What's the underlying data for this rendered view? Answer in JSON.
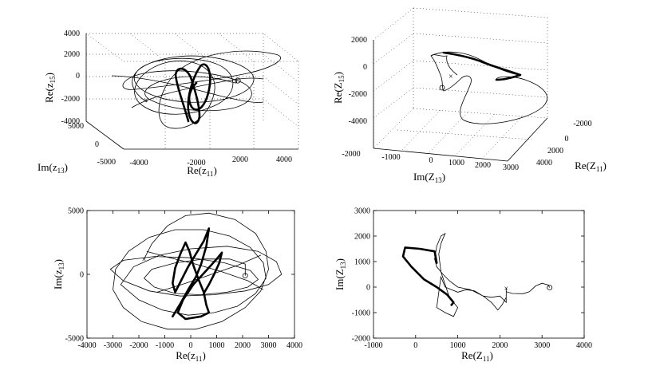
{
  "chart_data": [
    {
      "panel": "top-left",
      "type": "line",
      "projection": "3d",
      "xlabel": "Re(z",
      "xlabel_sub": "11",
      "xlabel_tail": ")",
      "ylabel": "Im(z",
      "ylabel_sub": "13",
      "ylabel_tail": ")",
      "zlabel": "Re(z",
      "zlabel_sub": "15",
      "zlabel_tail": ")",
      "xlim": [
        -4000,
        4000
      ],
      "ylim": [
        -5000,
        5000
      ],
      "zlim": [
        -4000,
        4000
      ],
      "xticks": [
        "-4000",
        "-2000",
        "0",
        "2000",
        "4000"
      ],
      "yticks": [
        "-5000",
        "0",
        "5000"
      ],
      "zticks": [
        "-4000",
        "-2000",
        "0",
        "2000",
        "4000"
      ],
      "grid": true,
      "markers": {
        "start": "x",
        "end": "o"
      }
    },
    {
      "panel": "top-right",
      "type": "line",
      "projection": "3d",
      "xlabel": "Re(Z",
      "xlabel_sub": "11",
      "xlabel_tail": ")",
      "ylabel": "Im(Z",
      "ylabel_sub": "13",
      "ylabel_tail": ")",
      "zlabel": "Re(Z",
      "zlabel_sub": "15",
      "zlabel_tail": ")",
      "xlim": [
        -2000,
        4000
      ],
      "ylim": [
        -2000,
        3000
      ],
      "zlim": [
        -4000,
        2000
      ],
      "xticks": [
        "-2000",
        "0",
        "2000",
        "4000"
      ],
      "yticks": [
        "-2000",
        "-1000",
        "0",
        "1000",
        "2000",
        "3000"
      ],
      "zticks": [
        "-4000",
        "-2000",
        "0",
        "2000"
      ],
      "grid": true,
      "markers": {
        "start": "x",
        "end": "o"
      }
    },
    {
      "panel": "bottom-left",
      "type": "line",
      "xlabel": "Re(z",
      "xlabel_sub": "11",
      "xlabel_tail": ")",
      "ylabel": "Im(z",
      "ylabel_sub": "13",
      "ylabel_tail": ")",
      "xlim": [
        -4000,
        4000
      ],
      "ylim": [
        -5000,
        5000
      ],
      "xticks": [
        "-4000",
        "-3000",
        "-2000",
        "-1000",
        "0",
        "1000",
        "2000",
        "3000",
        "4000"
      ],
      "yticks": [
        "-5000",
        "0",
        "5000"
      ],
      "grid": false,
      "series": [
        {
          "style": "thin",
          "points": [
            [
              -1800,
              1200
            ],
            [
              -1500,
              2400
            ],
            [
              -900,
              3800
            ],
            [
              -200,
              4600
            ],
            [
              700,
              4800
            ],
            [
              1700,
              4300
            ],
            [
              2500,
              3200
            ],
            [
              2900,
              1800
            ],
            [
              3000,
              400
            ],
            [
              2700,
              -1300
            ],
            [
              2100,
              -2600
            ],
            [
              1200,
              -3700
            ],
            [
              200,
              -4300
            ],
            [
              -900,
              -4300
            ],
            [
              -1900,
              -3700
            ],
            [
              -2600,
              -2600
            ],
            [
              -3000,
              -1200
            ],
            [
              -2900,
              400
            ],
            [
              -2400,
              1800
            ],
            [
              -1600,
              2900
            ],
            [
              -600,
              3500
            ],
            [
              500,
              3500
            ],
            [
              1500,
              3000
            ],
            [
              2300,
              2100
            ],
            [
              2800,
              900
            ],
            [
              2900,
              -300
            ],
            [
              2500,
              -1500
            ],
            [
              1800,
              -2500
            ],
            [
              900,
              -3000
            ],
            [
              -100,
              -3200
            ],
            [
              -1100,
              -2800
            ],
            [
              -2000,
              -2000
            ],
            [
              -2700,
              -800
            ],
            [
              -2200,
              600
            ],
            [
              -1200,
              1500
            ],
            [
              0,
              2000
            ],
            [
              1400,
              2200
            ],
            [
              2600,
              1800
            ],
            [
              3300,
              1000
            ],
            [
              3500,
              0
            ],
            [
              3000,
              -800
            ],
            [
              2100,
              -1300
            ],
            [
              900,
              -1600
            ],
            [
              -400,
              -1700
            ],
            [
              -1600,
              -1300
            ],
            [
              -2600,
              -500
            ],
            [
              -3100,
              400
            ],
            [
              -2600,
              1100
            ],
            [
              -1400,
              1400
            ],
            [
              0,
              1300
            ],
            [
              1300,
              900
            ],
            [
              2300,
              300
            ],
            [
              2600,
              -400
            ],
            [
              2200,
              -1000
            ],
            [
              1400,
              -1400
            ],
            [
              400,
              -1600
            ],
            [
              -600,
              -1500
            ],
            [
              -1400,
              -1000
            ],
            [
              -1800,
              -300
            ],
            [
              -1500,
              400
            ],
            [
              -600,
              900
            ],
            [
              500,
              1200
            ],
            [
              1500,
              1200
            ],
            [
              2100,
              800
            ],
            [
              2100,
              -100
            ]
          ]
        },
        {
          "style": "thin",
          "points": [
            [
              -1700,
              1800
            ],
            [
              -800,
              1300
            ],
            [
              200,
              800
            ],
            [
              1200,
              200
            ],
            [
              2200,
              -500
            ],
            [
              2800,
              -1200
            ]
          ]
        },
        {
          "style": "thin",
          "points": [
            [
              2700,
              1500
            ],
            [
              1800,
              700
            ],
            [
              800,
              0
            ],
            [
              -200,
              -700
            ],
            [
              -1300,
              -1400
            ]
          ]
        },
        {
          "style": "thick",
          "points": [
            [
              -700,
              -3300
            ],
            [
              -400,
              -2300
            ],
            [
              -100,
              -1200
            ],
            [
              200,
              -200
            ],
            [
              400,
              800
            ],
            [
              600,
              2200
            ],
            [
              700,
              3600
            ],
            [
              500,
              2600
            ],
            [
              200,
              1600
            ],
            [
              -100,
              600
            ],
            [
              -400,
              -600
            ],
            [
              -600,
              -1400
            ],
            [
              -700,
              -700
            ],
            [
              -600,
              500
            ],
            [
              -400,
              1600
            ],
            [
              -200,
              2500
            ],
            [
              -50,
              1800
            ],
            [
              100,
              700
            ],
            [
              300,
              -400
            ],
            [
              500,
              -1400
            ],
            [
              600,
              -2400
            ],
            [
              700,
              -3000
            ],
            [
              400,
              -3300
            ],
            [
              -200,
              -3500
            ],
            [
              -500,
              -3000
            ],
            [
              -300,
              -2000
            ],
            [
              100,
              -800
            ],
            [
              600,
              300
            ],
            [
              1000,
              1200
            ],
            [
              1200,
              1700
            ],
            [
              1100,
              900
            ],
            [
              900,
              0
            ],
            [
              700,
              -800
            ],
            [
              500,
              -1500
            ]
          ]
        }
      ],
      "markers": {
        "start": {
          "symbol": "x",
          "x": -1800,
          "y": 1200
        },
        "end": {
          "symbol": "o",
          "x": 2100,
          "y": -100
        }
      }
    },
    {
      "panel": "bottom-right",
      "type": "line",
      "xlabel": "Re(Z",
      "xlabel_sub": "11",
      "xlabel_tail": ")",
      "ylabel": "Im(Z",
      "ylabel_sub": "13",
      "ylabel_tail": ")",
      "xlim": [
        -1000,
        4000
      ],
      "ylim": [
        -2000,
        3000
      ],
      "xticks": [
        "-1000",
        "0",
        "1000",
        "2000",
        "3000",
        "4000"
      ],
      "yticks": [
        "-2000",
        "-1000",
        "0",
        "1000",
        "2000",
        "3000"
      ],
      "grid": false,
      "series": [
        {
          "style": "thin",
          "points": [
            [
              3180,
              -20
            ],
            [
              3150,
              80
            ],
            [
              3000,
              150
            ],
            [
              2850,
              50
            ],
            [
              2700,
              -180
            ],
            [
              2550,
              -260
            ],
            [
              2300,
              -250
            ],
            [
              2150,
              -180
            ],
            [
              2150,
              -600
            ],
            [
              2000,
              -350
            ],
            [
              1800,
              -400
            ],
            [
              1600,
              -350
            ],
            [
              1400,
              -150
            ],
            [
              1200,
              -100
            ],
            [
              1000,
              -200
            ],
            [
              700,
              0
            ],
            [
              600,
              400
            ],
            [
              500,
              -800
            ],
            [
              700,
              -1000
            ],
            [
              900,
              -1150
            ],
            [
              1000,
              -800
            ],
            [
              800,
              -400
            ],
            [
              700,
              100
            ],
            [
              600,
              600
            ],
            [
              550,
              1300
            ],
            [
              600,
              1700
            ],
            [
              650,
              1900
            ],
            [
              700,
              2100
            ],
            [
              600,
              2000
            ],
            [
              500,
              1600
            ],
            [
              450,
              1100
            ],
            [
              500,
              800
            ],
            [
              650,
              500
            ],
            [
              800,
              250
            ],
            [
              1000,
              0
            ],
            [
              1300,
              -100
            ],
            [
              1600,
              -350
            ],
            [
              1800,
              -600
            ],
            [
              1950,
              -900
            ],
            [
              2050,
              -700
            ],
            [
              2150,
              -400
            ],
            [
              2150,
              -50
            ]
          ]
        },
        {
          "style": "thick",
          "points": [
            [
              500,
              950
            ],
            [
              450,
              1400
            ],
            [
              100,
              1500
            ],
            [
              -250,
              1550
            ],
            [
              -300,
              1200
            ],
            [
              -100,
              800
            ],
            [
              200,
              300
            ],
            [
              500,
              0
            ],
            [
              750,
              -300
            ],
            [
              900,
              -600
            ],
            [
              850,
              -700
            ]
          ]
        }
      ],
      "markers": {
        "start": {
          "symbol": "x",
          "x": 2150,
          "y": -50
        },
        "end": {
          "symbol": "o",
          "x": 3180,
          "y": -20
        }
      }
    }
  ]
}
